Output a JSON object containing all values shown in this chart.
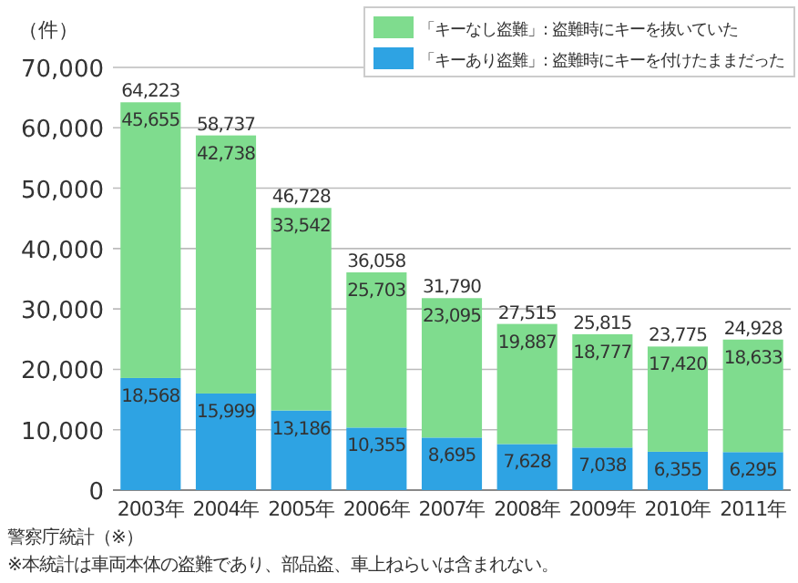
{
  "chart_data": {
    "type": "bar",
    "stacked": true,
    "ylabel": "（件）",
    "categories": [
      "2003年",
      "2004年",
      "2005年",
      "2006年",
      "2007年",
      "2008年",
      "2009年",
      "2010年",
      "2011年"
    ],
    "series": [
      {
        "name": "「キーあり盗難」: 盗難時にキーを付けたままだった",
        "color": "#2ea3e3",
        "values": [
          18568,
          15999,
          13186,
          10355,
          8695,
          7628,
          7038,
          6355,
          6295
        ],
        "value_labels": [
          "18,568",
          "15,999",
          "13,186",
          "10,355",
          "8,695",
          "7,628",
          "7,038",
          "6,355",
          "6,295"
        ]
      },
      {
        "name": "「キーなし盗難」: 盗難時にキーを抜いていた",
        "color": "#7fdc8e",
        "values": [
          45655,
          42738,
          33542,
          25703,
          23095,
          19887,
          18777,
          17420,
          18633
        ],
        "value_labels": [
          "45,655",
          "42,738",
          "33,542",
          "25,703",
          "23,095",
          "19,887",
          "18,777",
          "17,420",
          "18,633"
        ]
      }
    ],
    "totals": [
      "64,223",
      "58,737",
      "46,728",
      "36,058",
      "31,790",
      "27,515",
      "25,815",
      "23,775",
      "24,928"
    ],
    "ylim": [
      0,
      70000
    ],
    "yticks": [
      0,
      {
        "value": 10000,
        "label": "10,000"
      },
      {
        "value": 20000,
        "label": "20,000"
      },
      {
        "value": 30000,
        "label": "30,000"
      },
      {
        "value": 40000,
        "label": "40,000"
      },
      {
        "value": 50000,
        "label": "50,000"
      },
      {
        "value": 60000,
        "label": "60,000"
      },
      {
        "value": 70000,
        "label": "70,000"
      }
    ],
    "grid": "y",
    "legend": "top right",
    "annotations": [
      "警察庁統計（※）",
      "※本統計は車両本体の盗難であり、部品盗、車上ねらいは含まれない。"
    ]
  }
}
